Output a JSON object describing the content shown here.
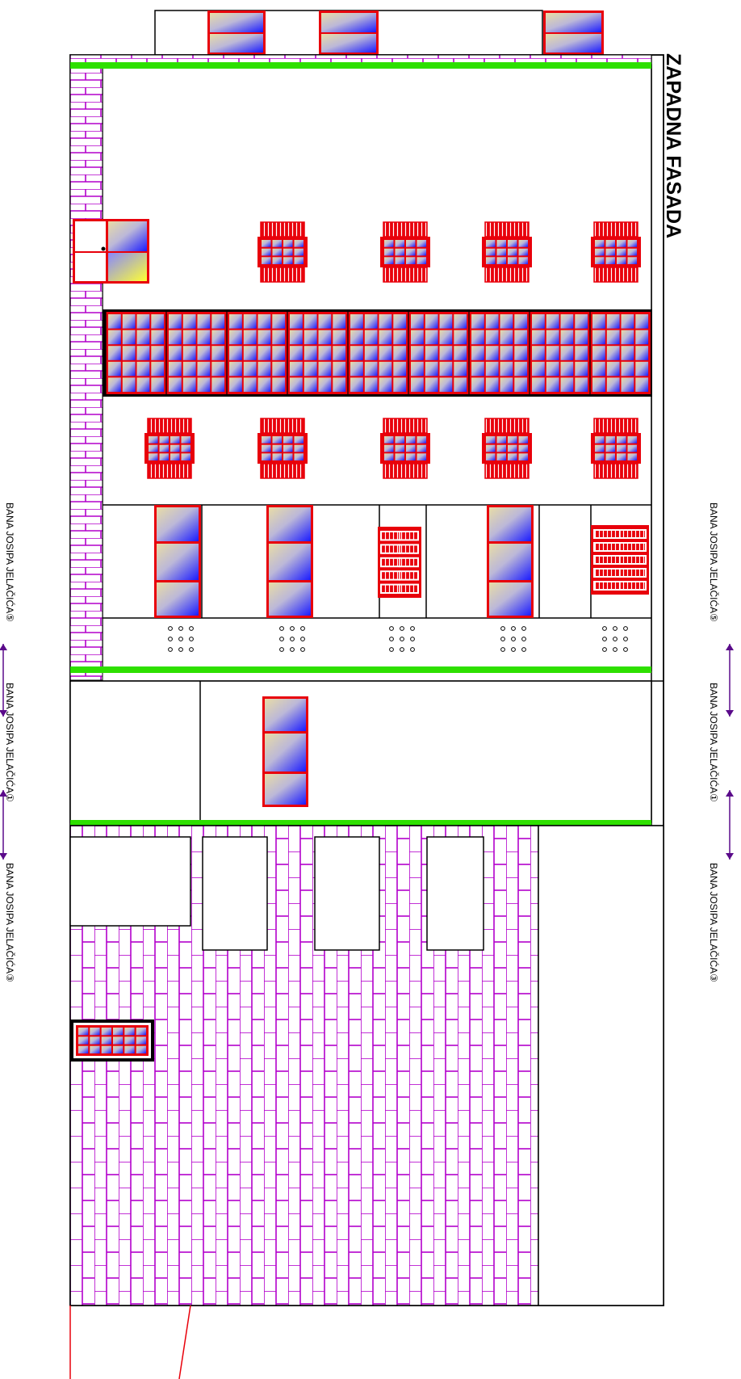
{
  "title": "ZAPADNA FASADA",
  "street_labels": {
    "label_5": "BANA JOSIPA JELAČIĆA⑤",
    "label_1": "BANA JOSIPA JELAČIĆA①",
    "label_3": "BANA JOSIPA JELAČIĆA③"
  },
  "colors": {
    "outline": "#000000",
    "frame_red": "#e8000b",
    "brick_purple": "#b300cc",
    "ledge_green": "#2ee000",
    "glass_blue": "#1a1aff",
    "glass_cream": "#e8dca6",
    "glass_yellow": "#ffff33",
    "axis_purple": "#5a0a8a"
  },
  "icons": {
    "axis_marker": "arrow-icon",
    "ventilation": "vent-dots-icon"
  }
}
